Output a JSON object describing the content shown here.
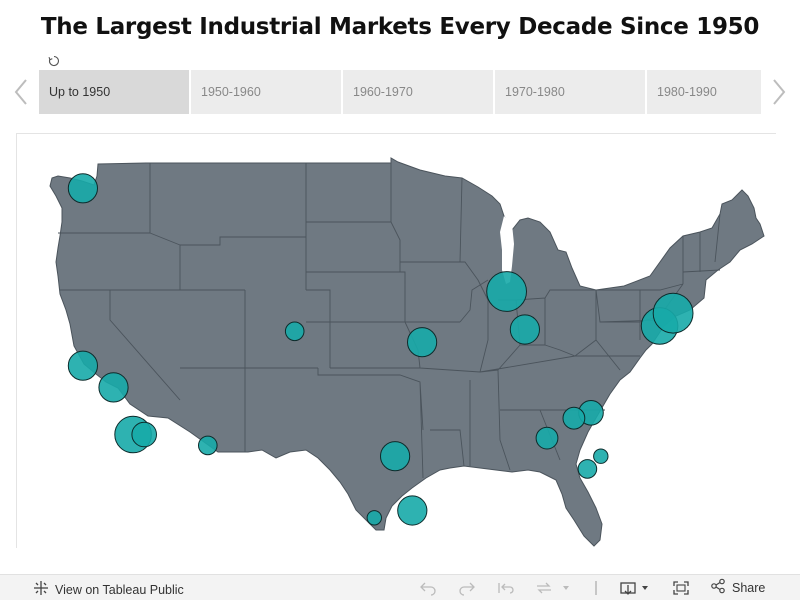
{
  "title": "The Largest Industrial Markets Every Decade Since 1950",
  "tabs": [
    {
      "label": "Up to 1950",
      "active": true
    },
    {
      "label": "1950-1960",
      "active": false
    },
    {
      "label": "1960-1970",
      "active": false
    },
    {
      "label": "1970-1980",
      "active": false
    },
    {
      "label": "1980-1990",
      "active": false
    }
  ],
  "map": {
    "region": "Contiguous United States",
    "land_color": "#6f7982",
    "border_color": "#4b545c",
    "marker_color": "#17aaa8",
    "markers": [
      {
        "city": "Seattle",
        "lat": 47.6,
        "lon": -122.3,
        "size": 3
      },
      {
        "city": "San Francisco Bay Area",
        "lat": 37.8,
        "lon": -122.3,
        "size": 3
      },
      {
        "city": "Central Valley",
        "lat": 36.6,
        "lon": -119.8,
        "size": 3
      },
      {
        "city": "Los Angeles",
        "lat": 34.0,
        "lon": -118.2,
        "size": 5
      },
      {
        "city": "Inland Empire",
        "lat": 34.0,
        "lon": -117.3,
        "size": 2
      },
      {
        "city": "Phoenix",
        "lat": 33.4,
        "lon": -112.1,
        "size": 1
      },
      {
        "city": "Denver",
        "lat": 39.7,
        "lon": -105.0,
        "size": 1
      },
      {
        "city": "Kansas City",
        "lat": 39.1,
        "lon": -94.6,
        "size": 3
      },
      {
        "city": "Dallas-Fort Worth",
        "lat": 32.8,
        "lon": -96.8,
        "size": 3
      },
      {
        "city": "San Antonio",
        "lat": 29.4,
        "lon": -98.5,
        "size": 0.5
      },
      {
        "city": "Houston",
        "lat": 29.8,
        "lon": -95.4,
        "size": 3
      },
      {
        "city": "Chicago",
        "lat": 41.9,
        "lon": -87.7,
        "size": 6
      },
      {
        "city": "Indianapolis",
        "lat": 39.8,
        "lon": -86.2,
        "size": 3
      },
      {
        "city": "Charlotte",
        "lat": 35.2,
        "lon": -80.8,
        "size": 2
      },
      {
        "city": "Greenville-Spartanburg",
        "lat": 34.9,
        "lon": -82.2,
        "size": 1.5
      },
      {
        "city": "Atlanta",
        "lat": 33.8,
        "lon": -84.4,
        "size": 1.5
      },
      {
        "city": "Savannah",
        "lat": 32.1,
        "lon": -81.1,
        "size": 1
      },
      {
        "city": "Charleston",
        "lat": 32.8,
        "lon": -80.0,
        "size": 0.5
      },
      {
        "city": "Philadelphia",
        "lat": 40.0,
        "lon": -75.2,
        "size": 5
      },
      {
        "city": "New York / New Jersey",
        "lat": 40.7,
        "lon": -74.1,
        "size": 6
      }
    ]
  },
  "footer": {
    "view_label": "View on Tableau Public",
    "share_label": "Share"
  }
}
